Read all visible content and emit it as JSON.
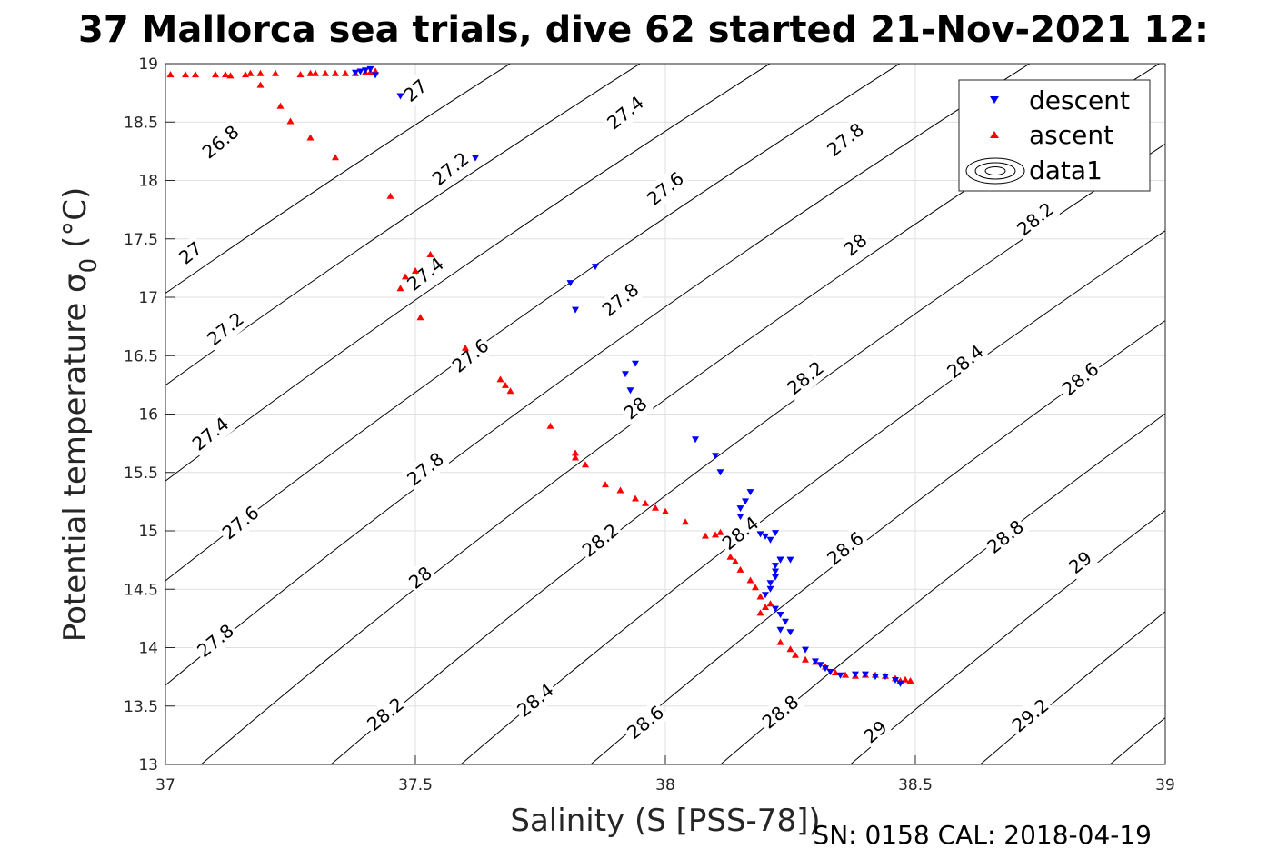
{
  "figure": {
    "title": "37 Mallorca sea trials, dive 62 started 21-Nov-2021 12:",
    "footer": "SN: 0158  CAL: 2018-04-19"
  },
  "chart_data": {
    "type": "scatter",
    "title": "37 Mallorca sea trials, dive 62 started 21-Nov-2021 12:",
    "xlabel": "Salinity (S [PSS-78])",
    "ylabel": "Potential temperature σ",
    "ylabel_sub": "0",
    "ylabel_unit": " (°C)",
    "xlim": [
      37,
      39
    ],
    "ylim": [
      13,
      19
    ],
    "xticks": [
      37,
      37.5,
      38,
      38.5,
      39
    ],
    "yticks": [
      13,
      13.5,
      14,
      14.5,
      15,
      15.5,
      16,
      16.5,
      17,
      17.5,
      18,
      18.5,
      19
    ],
    "xtick_labels": [
      "37",
      "37.5",
      "38",
      "38.5",
      "39"
    ],
    "ytick_labels": [
      "13",
      "13.5",
      "14",
      "14.5",
      "15",
      "15.5",
      "16",
      "16.5",
      "17",
      "17.5",
      "18",
      "18.5",
      "19"
    ],
    "grid": true,
    "legend_position": "top-right",
    "legend": [
      {
        "name": "descent",
        "marker": "triangle-down",
        "color": "#0000ff"
      },
      {
        "name": "ascent",
        "marker": "triangle-up",
        "color": "#ff0000"
      },
      {
        "name": "data1",
        "marker": "contour",
        "color": "#000000"
      }
    ],
    "contours": {
      "levels": [
        26.8,
        27,
        27.2,
        27.4,
        27.6,
        27.8,
        28,
        28.2,
        28.4,
        28.6,
        28.8,
        29,
        29.2
      ],
      "labels": [
        {
          "text": "26.8",
          "x": 37.11,
          "y": 18.33
        },
        {
          "text": "27",
          "x": 37.5,
          "y": 18.77
        },
        {
          "text": "27",
          "x": 37.05,
          "y": 17.38
        },
        {
          "text": "27.2",
          "x": 37.57,
          "y": 18.1
        },
        {
          "text": "27.2",
          "x": 37.12,
          "y": 16.73
        },
        {
          "text": "27.4",
          "x": 37.92,
          "y": 18.58
        },
        {
          "text": "27.4",
          "x": 37.52,
          "y": 17.2
        },
        {
          "text": "27.4",
          "x": 37.09,
          "y": 15.83
        },
        {
          "text": "27.6",
          "x": 38.0,
          "y": 17.93
        },
        {
          "text": "27.6",
          "x": 37.61,
          "y": 16.5
        },
        {
          "text": "27.6",
          "x": 37.15,
          "y": 15.07
        },
        {
          "text": "27.8",
          "x": 38.36,
          "y": 18.35
        },
        {
          "text": "27.8",
          "x": 37.91,
          "y": 16.98
        },
        {
          "text": "27.8",
          "x": 37.52,
          "y": 15.53
        },
        {
          "text": "27.8",
          "x": 37.1,
          "y": 14.06
        },
        {
          "text": "28",
          "x": 38.38,
          "y": 17.45
        },
        {
          "text": "28",
          "x": 37.94,
          "y": 16.05
        },
        {
          "text": "28",
          "x": 37.51,
          "y": 14.6
        },
        {
          "text": "28.2",
          "x": 38.74,
          "y": 17.67
        },
        {
          "text": "28.2",
          "x": 38.28,
          "y": 16.31
        },
        {
          "text": "28.2",
          "x": 37.87,
          "y": 14.92
        },
        {
          "text": "28.2",
          "x": 37.44,
          "y": 13.43
        },
        {
          "text": "28.4",
          "x": 38.6,
          "y": 16.45
        },
        {
          "text": "28.4",
          "x": 38.15,
          "y": 14.98
        },
        {
          "text": "28.4",
          "x": 37.74,
          "y": 13.55
        },
        {
          "text": "28.6",
          "x": 38.83,
          "y": 16.3
        },
        {
          "text": "28.6",
          "x": 38.36,
          "y": 14.85
        },
        {
          "text": "28.6",
          "x": 37.96,
          "y": 13.36
        },
        {
          "text": "28.8",
          "x": 38.68,
          "y": 14.95
        },
        {
          "text": "28.8",
          "x": 38.23,
          "y": 13.45
        },
        {
          "text": "29",
          "x": 38.83,
          "y": 14.73
        },
        {
          "text": "29",
          "x": 38.42,
          "y": 13.28
        },
        {
          "text": "29.2",
          "x": 38.73,
          "y": 13.42
        }
      ]
    },
    "series": [
      {
        "name": "descent",
        "marker": "triangle-down",
        "color": "#0000ff",
        "points": [
          [
            37.38,
            18.92
          ],
          [
            37.4,
            18.94
          ],
          [
            37.41,
            18.95
          ],
          [
            37.42,
            18.9
          ],
          [
            37.39,
            18.93
          ],
          [
            37.47,
            18.72
          ],
          [
            37.62,
            18.19
          ],
          [
            37.81,
            17.12
          ],
          [
            37.82,
            16.89
          ],
          [
            37.86,
            17.26
          ],
          [
            37.92,
            16.34
          ],
          [
            37.93,
            16.2
          ],
          [
            37.94,
            16.43
          ],
          [
            38.06,
            15.78
          ],
          [
            38.1,
            15.64
          ],
          [
            38.11,
            15.5
          ],
          [
            38.15,
            15.19
          ],
          [
            38.16,
            15.25
          ],
          [
            38.17,
            15.33
          ],
          [
            38.15,
            15.12
          ],
          [
            38.19,
            14.97
          ],
          [
            38.2,
            14.95
          ],
          [
            38.21,
            14.92
          ],
          [
            38.22,
            14.98
          ],
          [
            38.23,
            14.75
          ],
          [
            38.22,
            14.7
          ],
          [
            38.22,
            14.65
          ],
          [
            38.22,
            14.6
          ],
          [
            38.21,
            14.55
          ],
          [
            38.21,
            14.5
          ],
          [
            38.2,
            14.45
          ],
          [
            38.23,
            14.75
          ],
          [
            38.25,
            14.75
          ],
          [
            38.22,
            14.33
          ],
          [
            38.23,
            14.28
          ],
          [
            38.24,
            14.22
          ],
          [
            38.23,
            14.15
          ],
          [
            38.25,
            14.13
          ],
          [
            38.28,
            13.98
          ],
          [
            38.3,
            13.88
          ],
          [
            38.31,
            13.85
          ],
          [
            38.32,
            13.82
          ],
          [
            38.33,
            13.79
          ],
          [
            38.35,
            13.76
          ],
          [
            38.38,
            13.77
          ],
          [
            38.4,
            13.77
          ],
          [
            38.42,
            13.75
          ],
          [
            38.44,
            13.75
          ],
          [
            38.46,
            13.72
          ],
          [
            38.47,
            13.69
          ]
        ]
      },
      {
        "name": "ascent",
        "marker": "triangle-up",
        "color": "#ff0000",
        "points": [
          [
            37.01,
            18.91
          ],
          [
            37.04,
            18.91
          ],
          [
            37.06,
            18.91
          ],
          [
            37.1,
            18.91
          ],
          [
            37.12,
            18.91
          ],
          [
            37.13,
            18.9
          ],
          [
            37.16,
            18.91
          ],
          [
            37.17,
            18.92
          ],
          [
            37.19,
            18.92
          ],
          [
            37.22,
            18.92
          ],
          [
            37.27,
            18.91
          ],
          [
            37.29,
            18.92
          ],
          [
            37.3,
            18.92
          ],
          [
            37.32,
            18.92
          ],
          [
            37.34,
            18.92
          ],
          [
            37.36,
            18.92
          ],
          [
            37.38,
            18.92
          ],
          [
            37.4,
            18.93
          ],
          [
            37.41,
            18.93
          ],
          [
            37.42,
            18.94
          ],
          [
            37.19,
            18.82
          ],
          [
            37.23,
            18.64
          ],
          [
            37.25,
            18.51
          ],
          [
            37.29,
            18.37
          ],
          [
            37.34,
            18.2
          ],
          [
            37.45,
            17.87
          ],
          [
            37.53,
            17.37
          ],
          [
            37.47,
            17.08
          ],
          [
            37.48,
            17.18
          ],
          [
            37.5,
            17.23
          ],
          [
            37.51,
            16.83
          ],
          [
            37.6,
            16.57
          ],
          [
            37.67,
            16.3
          ],
          [
            37.68,
            16.25
          ],
          [
            37.69,
            16.2
          ],
          [
            37.77,
            15.9
          ],
          [
            37.82,
            15.67
          ],
          [
            37.82,
            15.63
          ],
          [
            37.84,
            15.57
          ],
          [
            37.88,
            15.4
          ],
          [
            37.91,
            15.35
          ],
          [
            37.94,
            15.28
          ],
          [
            37.96,
            15.24
          ],
          [
            37.98,
            15.2
          ],
          [
            38.0,
            15.17
          ],
          [
            38.04,
            15.08
          ],
          [
            38.08,
            14.96
          ],
          [
            38.1,
            14.97
          ],
          [
            38.11,
            14.99
          ],
          [
            38.13,
            14.78
          ],
          [
            38.14,
            14.74
          ],
          [
            38.15,
            14.67
          ],
          [
            38.17,
            14.58
          ],
          [
            38.18,
            14.52
          ],
          [
            38.19,
            14.44
          ],
          [
            38.2,
            14.35
          ],
          [
            38.21,
            14.38
          ],
          [
            38.19,
            14.3
          ],
          [
            38.23,
            14.05
          ],
          [
            38.25,
            13.99
          ],
          [
            38.26,
            13.94
          ],
          [
            38.28,
            13.9
          ],
          [
            38.3,
            13.88
          ],
          [
            38.32,
            13.84
          ],
          [
            38.34,
            13.79
          ],
          [
            38.36,
            13.77
          ],
          [
            38.38,
            13.76
          ],
          [
            38.4,
            13.77
          ],
          [
            38.42,
            13.77
          ],
          [
            38.44,
            13.76
          ],
          [
            38.46,
            13.74
          ],
          [
            38.47,
            13.72
          ],
          [
            38.48,
            13.73
          ],
          [
            38.49,
            13.72
          ]
        ]
      }
    ]
  }
}
